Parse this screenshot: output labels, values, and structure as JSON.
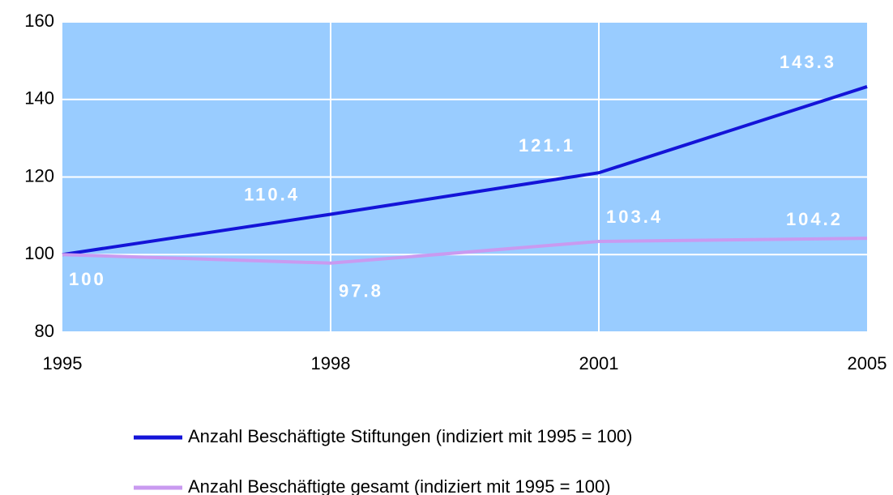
{
  "chart_data": {
    "type": "line",
    "categories": [
      "1995",
      "1998",
      "2001",
      "2005"
    ],
    "series": [
      {
        "name": "Anzahl Beschäftigte Stiftungen (indiziert mit 1995 = 100)",
        "color": "#1414d8",
        "values": [
          100,
          110.4,
          121.1,
          143.3
        ]
      },
      {
        "name": "Anzahl Beschäftigte gesamt (indiziert mit 1995 = 100)",
        "color": "#c99af0",
        "values": [
          100,
          97.8,
          103.4,
          104.2
        ]
      }
    ],
    "ylim": [
      80,
      160
    ],
    "yticks": [
      80,
      100,
      120,
      140,
      160
    ],
    "grid": true,
    "plot_background": "#99ccff"
  }
}
